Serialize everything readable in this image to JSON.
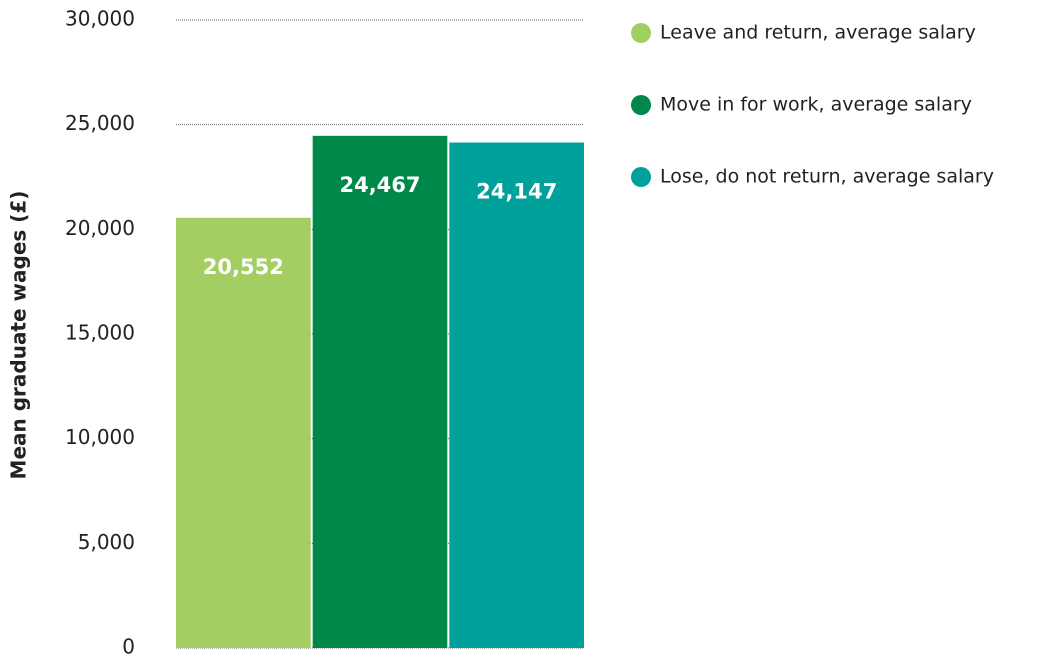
{
  "chart_data": {
    "type": "bar",
    "y_axis_label": "Mean graduate wages (£)",
    "categories": [
      "Leave and return, average salary",
      "Move in for work, average salary",
      "Lose, do not return, average salary"
    ],
    "values": [
      20552,
      24467,
      24147
    ],
    "value_labels": [
      "20,552",
      "24,467",
      "24,147"
    ],
    "colors": [
      "#a3cf62",
      "#00874a",
      "#00a19a"
    ],
    "ylim": [
      0,
      30000
    ],
    "yticks": [
      0,
      {
        "value": 5000,
        "label": "5,000"
      },
      {
        "value": 10000,
        "label": "10,000"
      },
      {
        "value": 15000,
        "label": "15,000"
      },
      {
        "value": 20000,
        "label": "20,000"
      },
      {
        "value": 25000,
        "label": "25,000"
      },
      {
        "value": 30000,
        "label": "30,000"
      }
    ],
    "grid": true,
    "legend": "right"
  }
}
